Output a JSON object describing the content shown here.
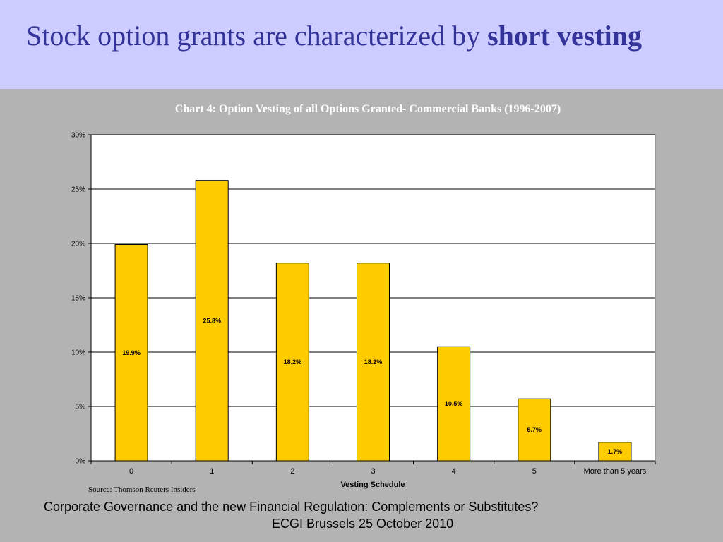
{
  "slide": {
    "title_normal": "Stock option grants are characterized by ",
    "title_bold": "short vesting",
    "source": "Source: Thomson Reuters Insiders",
    "footer_line1": "Corporate Governance and the new Financial Regulation: Complements or Substitutes?",
    "footer_line2": "ECGI Brussels 25 October 2010"
  },
  "colors": {
    "header_bg": "#ccccff",
    "title": "#333399",
    "slide_bg": "#b3b3b3",
    "bar_fill": "#ffcc00"
  },
  "chart_data": {
    "type": "bar",
    "title": "Chart 4: Option Vesting of all Options Granted- Commercial Banks (1996-2007)",
    "xlabel": "Vesting Schedule",
    "ylabel": "",
    "categories": [
      "0",
      "1",
      "2",
      "3",
      "4",
      "5",
      "More than 5 years"
    ],
    "values": [
      19.9,
      25.8,
      18.2,
      18.2,
      10.5,
      5.7,
      1.7
    ],
    "data_labels": [
      "19.9%",
      "25.8%",
      "18.2%",
      "18.2%",
      "10.5%",
      "5.7%",
      "1.7%"
    ],
    "ylim": [
      0,
      30
    ],
    "yticks": [
      0,
      5,
      10,
      15,
      20,
      25,
      30
    ],
    "ytick_labels": [
      "0%",
      "5%",
      "10%",
      "15%",
      "20%",
      "25%",
      "30%"
    ],
    "grid": true,
    "legend": "none"
  }
}
